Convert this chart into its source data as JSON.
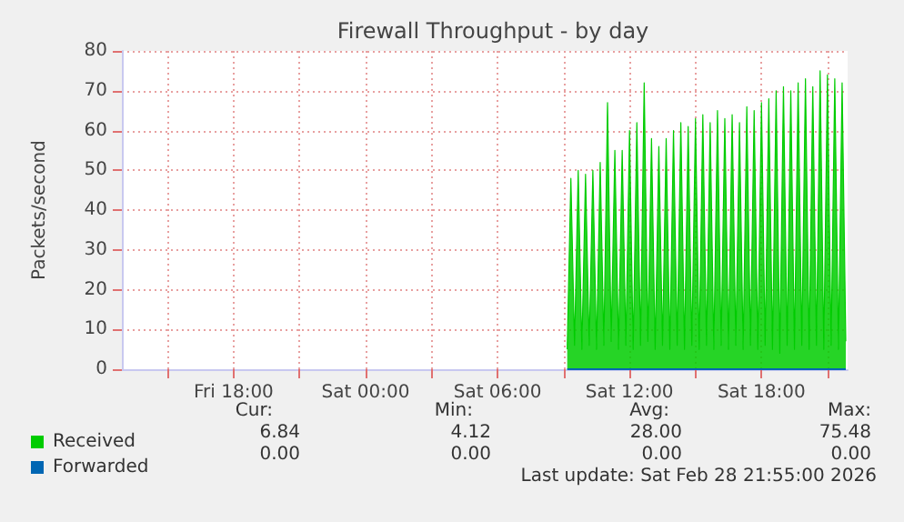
{
  "chart_data": {
    "type": "area",
    "title": "Firewall Throughput - by day",
    "ylabel": "Packets/second",
    "x": [
      "2026-02-28T09:10",
      "2026-02-28T09:20",
      "2026-02-28T09:30",
      "2026-02-28T09:40",
      "2026-02-28T09:50",
      "2026-02-28T10:00",
      "2026-02-28T10:10",
      "2026-02-28T10:20",
      "2026-02-28T10:30",
      "2026-02-28T10:40",
      "2026-02-28T10:50",
      "2026-02-28T11:00",
      "2026-02-28T11:10",
      "2026-02-28T11:20",
      "2026-02-28T11:30",
      "2026-02-28T11:40",
      "2026-02-28T11:50",
      "2026-02-28T12:00",
      "2026-02-28T12:10",
      "2026-02-28T12:20",
      "2026-02-28T12:30",
      "2026-02-28T12:40",
      "2026-02-28T12:50",
      "2026-02-28T13:00",
      "2026-02-28T13:10",
      "2026-02-28T13:20",
      "2026-02-28T13:30",
      "2026-02-28T13:40",
      "2026-02-28T13:50",
      "2026-02-28T14:00",
      "2026-02-28T14:10",
      "2026-02-28T14:20",
      "2026-02-28T14:30",
      "2026-02-28T14:40",
      "2026-02-28T14:50",
      "2026-02-28T15:00",
      "2026-02-28T15:10",
      "2026-02-28T15:20",
      "2026-02-28T15:30",
      "2026-02-28T15:40",
      "2026-02-28T15:50",
      "2026-02-28T16:00",
      "2026-02-28T16:10",
      "2026-02-28T16:20",
      "2026-02-28T16:30",
      "2026-02-28T16:40",
      "2026-02-28T16:50",
      "2026-02-28T17:00",
      "2026-02-28T17:10",
      "2026-02-28T17:20",
      "2026-02-28T17:30",
      "2026-02-28T17:40",
      "2026-02-28T17:50",
      "2026-02-28T18:00",
      "2026-02-28T18:10",
      "2026-02-28T18:20",
      "2026-02-28T18:30",
      "2026-02-28T18:40",
      "2026-02-28T18:50",
      "2026-02-28T19:00",
      "2026-02-28T19:10",
      "2026-02-28T19:20",
      "2026-02-28T19:30",
      "2026-02-28T19:40",
      "2026-02-28T19:50",
      "2026-02-28T20:00",
      "2026-02-28T20:10",
      "2026-02-28T20:20",
      "2026-02-28T20:30",
      "2026-02-28T20:40",
      "2026-02-28T20:50",
      "2026-02-28T21:00",
      "2026-02-28T21:10",
      "2026-02-28T21:20",
      "2026-02-28T21:30",
      "2026-02-28T21:40",
      "2026-02-28T21:50"
    ],
    "series": [
      {
        "name": "Received",
        "color": "#00cc00",
        "values": [
          5,
          48,
          6,
          50,
          5,
          49,
          6,
          50,
          5,
          52,
          6,
          67,
          7,
          55,
          5,
          55,
          6,
          60,
          5,
          62,
          6,
          72,
          7,
          58,
          5,
          56,
          6,
          58,
          5,
          60,
          6,
          62,
          5,
          61,
          6,
          63,
          5,
          64,
          6,
          62,
          5,
          65,
          6,
          63,
          5,
          64,
          6,
          62,
          5,
          66,
          6,
          65,
          5,
          67,
          6,
          68,
          5,
          70,
          4,
          71,
          6,
          70,
          5,
          72,
          6,
          73,
          5,
          71,
          6,
          75,
          5,
          74,
          6,
          73,
          5,
          72,
          7
        ]
      },
      {
        "name": "Forwarded",
        "color": "#0066b3",
        "type": "line",
        "x": [
          "2026-02-28T09:10",
          "2026-02-28T21:50"
        ],
        "values": [
          0,
          0
        ]
      }
    ],
    "xlim": [
      "2026-02-27T12:55",
      "2026-02-28T21:55"
    ],
    "xticks": [
      {
        "value": "2026-02-27T15:00",
        "label": null
      },
      {
        "value": "2026-02-27T18:00",
        "label": "Fri 18:00"
      },
      {
        "value": "2026-02-27T21:00",
        "label": null
      },
      {
        "value": "2026-02-28T00:00",
        "label": "Sat 00:00"
      },
      {
        "value": "2026-02-28T03:00",
        "label": null
      },
      {
        "value": "2026-02-28T06:00",
        "label": "Sat 06:00"
      },
      {
        "value": "2026-02-28T09:00",
        "label": null
      },
      {
        "value": "2026-02-28T12:00",
        "label": "Sat 12:00"
      },
      {
        "value": "2026-02-28T15:00",
        "label": null
      },
      {
        "value": "2026-02-28T18:00",
        "label": "Sat 18:00"
      },
      {
        "value": "2026-02-28T21:00",
        "label": null
      }
    ],
    "ylim": [
      0,
      80
    ],
    "yticks": [
      0,
      10,
      20,
      30,
      40,
      50,
      60,
      70,
      80
    ],
    "grid": true,
    "legend": "bottom left",
    "annotations": [
      "Cur:",
      "Min:",
      "Avg:",
      "Max:",
      "6.84",
      "4.12",
      "28.00",
      "75.48",
      "0.00",
      "0.00",
      "0.00",
      "0.00",
      "Last update: Sat Feb 28 21:55:00 2026"
    ]
  }
}
